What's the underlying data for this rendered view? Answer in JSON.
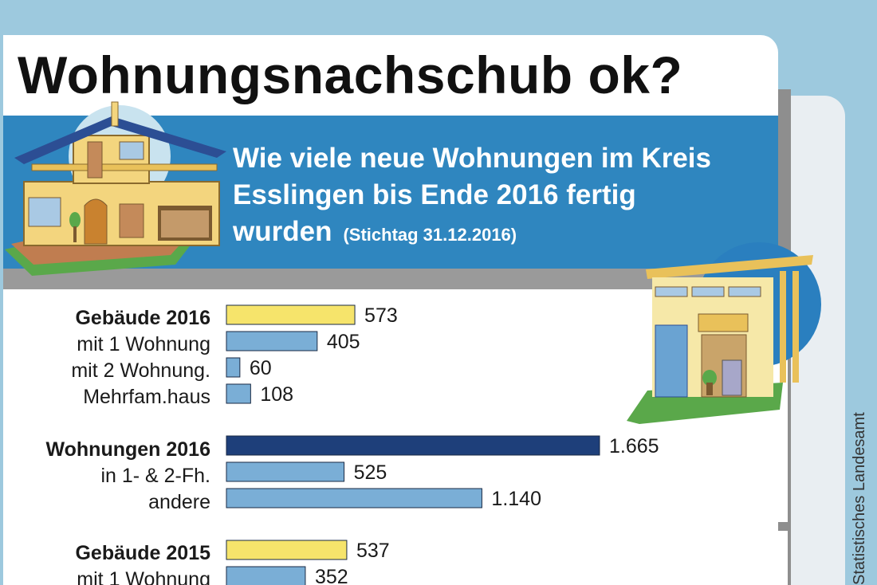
{
  "title": "Wohnungsnachschub ok?",
  "subtitle": "Wie viele neue Wohnungen im Kreis Esslingen bis Ende 2016 fertig wurden",
  "subtitle_note": "(Stichtag 31.12.2016)",
  "source": "Statistisches Landesamt",
  "colors": {
    "sky": "#9dc9de",
    "banner": "#2f86bf",
    "yellow": "#f6e46b",
    "light_blue": "#7aaed6",
    "dark_blue": "#1e3f7a"
  },
  "chart_data": {
    "type": "bar",
    "orientation": "horizontal",
    "categories": [
      "Gebäude 2016",
      "mit 1 Wohnung",
      "mit 2 Wohnung.",
      "Mehrfam.haus",
      "Wohnungen 2016",
      "in 1- & 2-Fh.",
      "andere",
      "Gebäude 2015",
      "mit 1 Wohnung"
    ],
    "values": [
      573,
      405,
      60,
      108,
      1665,
      525,
      1140,
      537,
      352
    ],
    "value_labels": [
      "573",
      "405",
      "60",
      "108",
      "1.665",
      "525",
      "1.140",
      "537",
      "352"
    ],
    "bar_colors": [
      "yellow",
      "light_blue",
      "light_blue",
      "light_blue",
      "dark_blue",
      "light_blue",
      "light_blue",
      "yellow",
      "light_blue"
    ],
    "bold_labels": [
      true,
      false,
      false,
      false,
      true,
      false,
      false,
      true,
      false
    ],
    "xlim": [
      0,
      1665
    ]
  }
}
